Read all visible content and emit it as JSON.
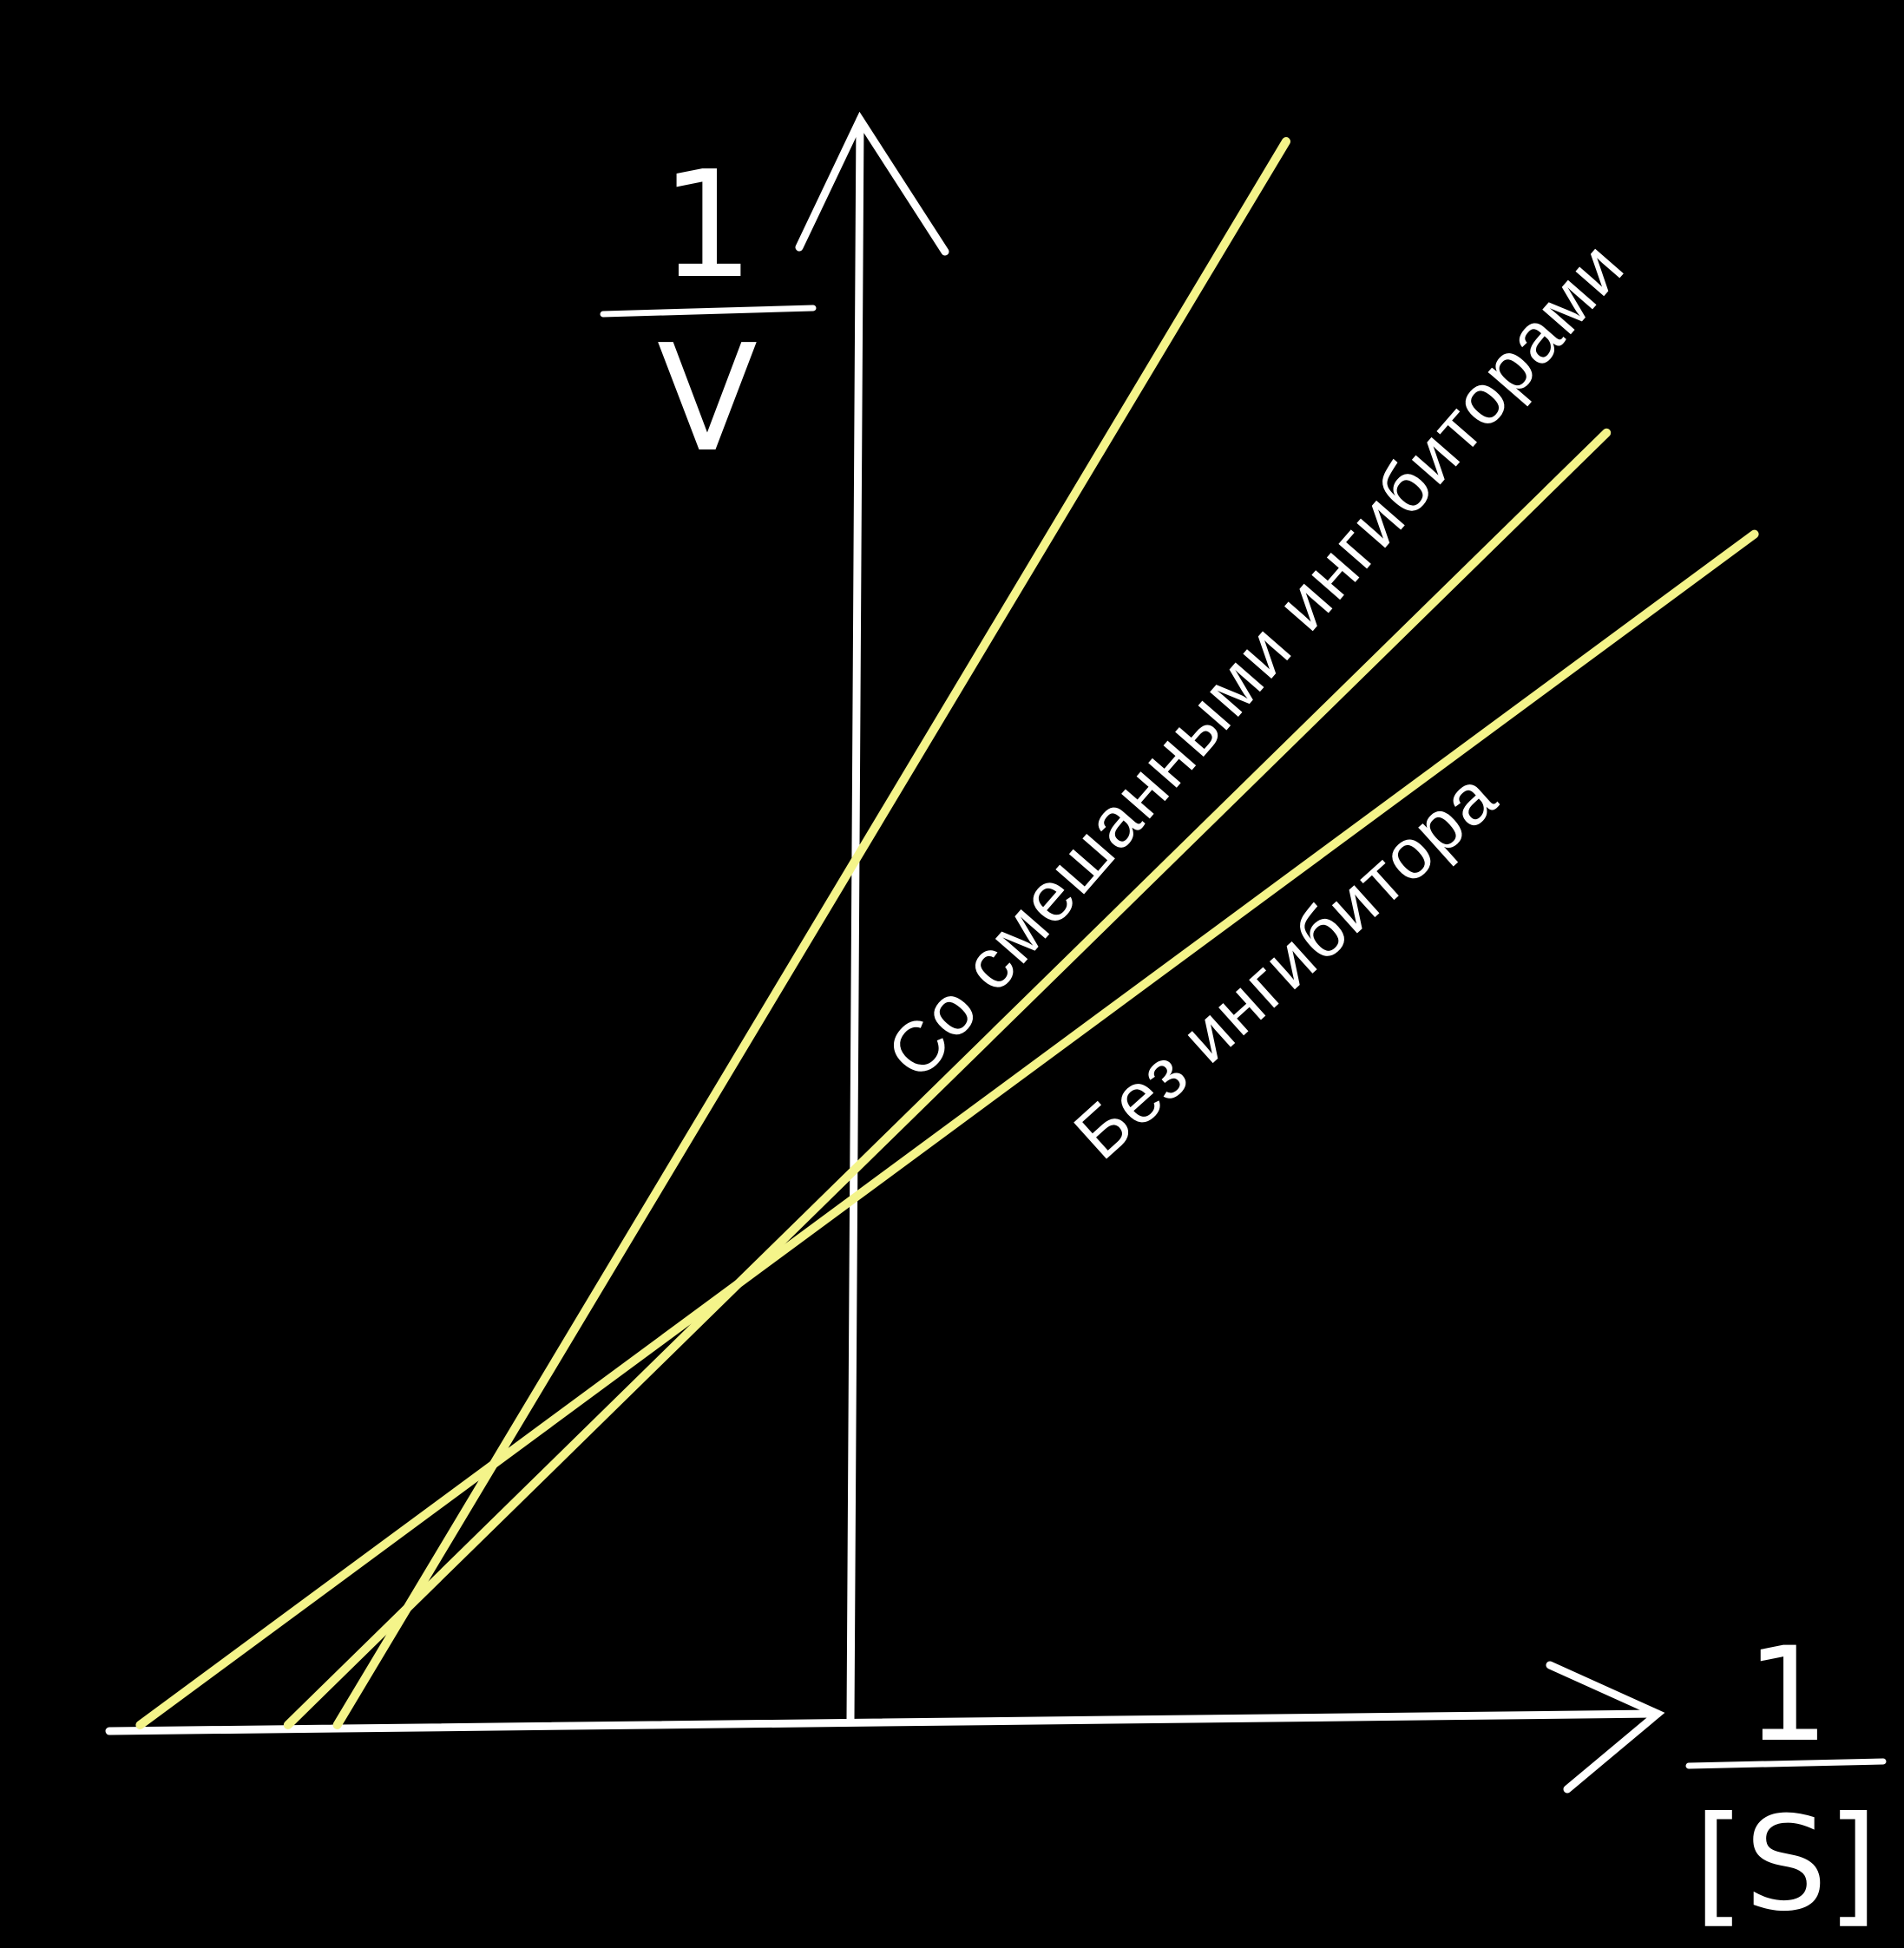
{
  "chart_data": {
    "type": "line",
    "title": "",
    "xlabel": {
      "numerator": "1",
      "denominator": "[S]"
    },
    "ylabel": {
      "numerator": "1",
      "denominator": "V"
    },
    "grid": false,
    "xlim": [
      -6,
      6
    ],
    "ylim": [
      0,
      13.5
    ],
    "series": [
      {
        "name": "",
        "x": [
          -4.2,
          3.5
        ],
        "y": [
          0,
          12.5
        ]
      },
      {
        "name": "Со смешанными ингибиторами",
        "x": [
          -4.6,
          6.1
        ],
        "y": [
          0,
          10.2
        ]
      },
      {
        "name": "Без ингибитора",
        "x": [
          -5.8,
          7.3
        ],
        "y": [
          0,
          9.4
        ]
      }
    ]
  },
  "colors": {
    "background": "#000000",
    "axes": "#ffffff",
    "series_line": "#f4f48a",
    "text": "#ffffff"
  }
}
